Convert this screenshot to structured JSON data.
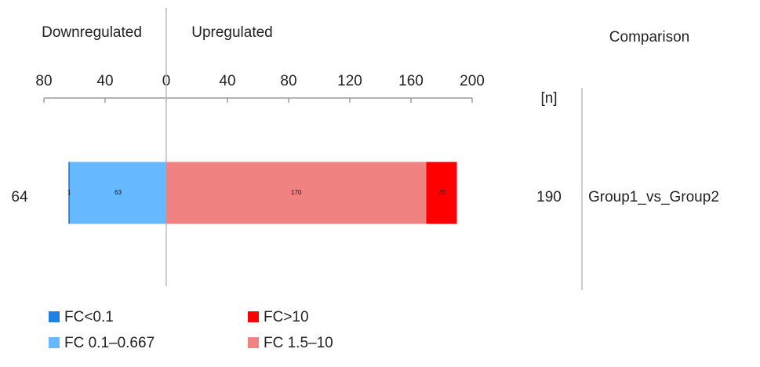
{
  "chart_data": {
    "type": "diverging_stacked_bar",
    "left_heading": "Downregulated",
    "right_heading": "Upregulated",
    "comparison_heading": "Comparison",
    "count_heading": "[n]",
    "categories": [
      "Group1_vs_Group2"
    ],
    "down_totals": [
      64
    ],
    "up_totals": [
      190
    ],
    "series": [
      {
        "name": "FC 0.1–0.667",
        "color": "#66b8ff",
        "values": [
          -63
        ],
        "value_labels": [
          "63"
        ]
      },
      {
        "name": "FC<0.1",
        "color": "#1f80e6",
        "values": [
          -1
        ],
        "value_labels": [
          "1"
        ]
      },
      {
        "name": "FC 1.5–10",
        "color": "#f08282",
        "values": [
          170
        ]
      },
      {
        "name": "FC>10",
        "color": "#ff0000",
        "values": [
          20
        ]
      }
    ],
    "xlim": [
      -80,
      200
    ],
    "xticks": [
      {
        "value": -80,
        "label": "80"
      },
      {
        "value": -40,
        "label": "40"
      },
      0,
      40,
      80,
      120,
      160,
      200
    ]
  }
}
